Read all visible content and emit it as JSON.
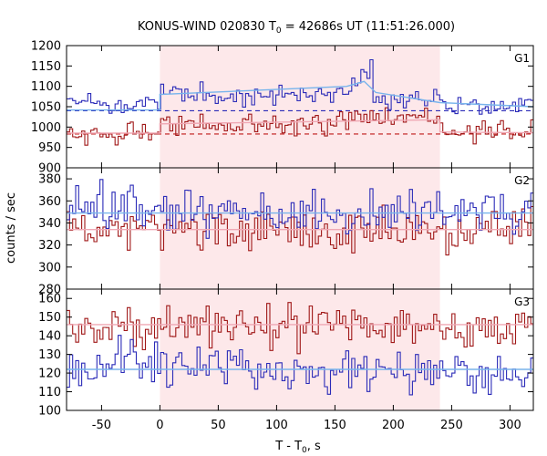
{
  "chart_data": {
    "type": "line",
    "title": "KONUS-WIND 020830 T",
    "title_sub": "0",
    "title_rest": " = 42686s UT (11:51:26.000)",
    "xlabel": "T - T",
    "xlabel_sub": "0",
    "xlabel_rest": ", s",
    "ylabel": "counts / sec",
    "xlim": [
      -80,
      320
    ],
    "xticks": [
      -50,
      0,
      50,
      100,
      150,
      200,
      250,
      300
    ],
    "highlight": {
      "x0": 0,
      "x1": 240,
      "color": "#fde8ea"
    },
    "colors": {
      "blue": "#2b2bb8",
      "red": "#a01818",
      "lightblue": "#78b4ec",
      "pink": "#f0a8b4",
      "dashed": "#c01818"
    },
    "panels": [
      {
        "name": "G1",
        "ylim": [
          900,
          1200
        ],
        "yticks": [
          900,
          950,
          1000,
          1050,
          1100,
          1150,
          1200
        ],
        "blue": {
          "segments": [
            [
              -80,
              0,
              1055
            ],
            [
              0,
              140,
              1080
            ],
            [
              140,
              160,
              1085
            ],
            [
              160,
              172,
              1092
            ],
            [
              172,
              182,
              1128
            ],
            [
              182,
              240,
              1065
            ],
            [
              240,
              320,
              1052
            ]
          ],
          "noise": 13,
          "seed": 3
        },
        "red": {
          "segments": [
            [
              -80,
              -30,
              985
            ],
            [
              -30,
              0,
              990
            ],
            [
              0,
              160,
              1008
            ],
            [
              160,
              240,
              1022
            ],
            [
              240,
              320,
              988
            ]
          ],
          "noise": 13,
          "seed": 7
        },
        "blue_bg": 1040,
        "red_bg": 983,
        "blue_fit": [
          [
            -80,
            1042
          ],
          [
            0,
            1042
          ],
          [
            0,
            1080
          ],
          [
            160,
            1100
          ],
          [
            175,
            1112
          ],
          [
            185,
            1085
          ],
          [
            240,
            1060
          ],
          [
            320,
            1050
          ]
        ],
        "red_fit": [
          [
            -80,
            985
          ],
          [
            0,
            985
          ],
          [
            0,
            1008
          ],
          [
            240,
            1018
          ],
          [
            240,
            988
          ],
          [
            320,
            986
          ]
        ]
      },
      {
        "name": "G2",
        "ylim": [
          280,
          390
        ],
        "yticks": [
          280,
          300,
          320,
          340,
          360,
          380
        ],
        "blue": {
          "segments": [
            [
              -80,
              320,
              350
            ]
          ],
          "noise": 11,
          "seed": 11
        },
        "red": {
          "segments": [
            [
              -80,
              320,
              334
            ]
          ],
          "noise": 10,
          "seed": 19
        },
        "blue_bg": null,
        "red_bg": null,
        "blue_fit": [
          [
            -80,
            349
          ],
          [
            320,
            349
          ]
        ],
        "red_fit": [
          [
            -80,
            334
          ],
          [
            320,
            334
          ]
        ]
      },
      {
        "name": "G3",
        "ylim": [
          100,
          165
        ],
        "yticks": [
          100,
          110,
          120,
          130,
          140,
          150,
          160
        ],
        "blue": {
          "segments": [
            [
              -80,
              -40,
              120
            ],
            [
              -40,
              0,
              128
            ],
            [
              0,
              70,
              124
            ],
            [
              70,
              320,
              120
            ]
          ],
          "noise": 6,
          "seed": 23
        },
        "red": {
          "segments": [
            [
              -80,
              320,
              145
            ]
          ],
          "noise": 6,
          "seed": 29
        },
        "blue_bg": null,
        "red_bg": null,
        "blue_fit": [
          [
            -80,
            122
          ],
          [
            320,
            122
          ]
        ],
        "red_fit": [
          [
            -80,
            146
          ],
          [
            320,
            146
          ]
        ]
      }
    ]
  }
}
